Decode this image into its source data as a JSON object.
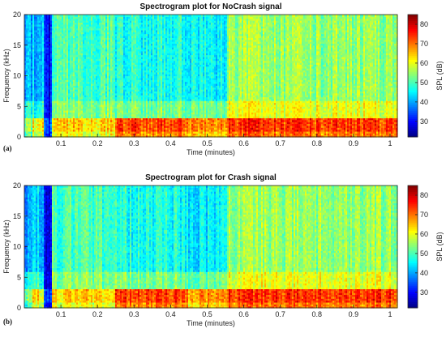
{
  "chart_data": [
    {
      "type": "heatmap",
      "panel_label": "(a)",
      "title": "Spectrogram plot for NoCrash signal",
      "xlabel": "Time (minutes)",
      "ylabel": "Frequency (kHz)",
      "colorbar_label": "SPL (dB)",
      "xlim": [
        0.0,
        1.02
      ],
      "ylim": [
        0,
        20
      ],
      "clim": [
        22,
        85
      ],
      "x_ticks": [
        0.1,
        0.2,
        0.3,
        0.4,
        0.5,
        0.6,
        0.7,
        0.8,
        0.9,
        1
      ],
      "x_tick_labels": [
        "0.1",
        "0.2",
        "0.3",
        "0.4",
        "0.5",
        "0.6",
        "0.7",
        "0.8",
        "0.9",
        "1"
      ],
      "y_ticks": [
        0,
        5,
        10,
        15,
        20
      ],
      "y_tick_labels": [
        "0",
        "5",
        "10",
        "15",
        "20"
      ],
      "colorbar_ticks": [
        30,
        40,
        50,
        60,
        70,
        80
      ],
      "colorbar_tick_labels": [
        "30",
        "40",
        "50",
        "60",
        "70",
        "80"
      ],
      "colormap": "jet",
      "regions": [
        {
          "t": [
            0.0,
            0.02
          ],
          "f_high_db": 40,
          "f_mid_db": 47,
          "f_low_db": 52
        },
        {
          "t": [
            0.02,
            0.055
          ],
          "f_high_db": 42,
          "f_mid_db": 48,
          "f_low_db": 60
        },
        {
          "t": [
            0.055,
            0.075
          ],
          "f_high_db": 30,
          "f_mid_db": 30,
          "f_low_db": 33
        },
        {
          "t": [
            0.075,
            0.25
          ],
          "f_high_db": 50,
          "f_mid_db": 54,
          "f_low_db": 62
        },
        {
          "t": [
            0.25,
            0.45
          ],
          "f_high_db": 47,
          "f_mid_db": 53,
          "f_low_db": 71
        },
        {
          "t": [
            0.45,
            0.555
          ],
          "f_high_db": 45,
          "f_mid_db": 52,
          "f_low_db": 66
        },
        {
          "t": [
            0.555,
            1.02
          ],
          "f_high_db": 55,
          "f_mid_db": 60,
          "f_low_db": 72
        }
      ]
    },
    {
      "type": "heatmap",
      "panel_label": "(b)",
      "title": "Spectrogram plot for Crash signal",
      "xlabel": "Time (minutes)",
      "ylabel": "Frequency (kHz)",
      "colorbar_label": "SPL (dB)",
      "xlim": [
        0.0,
        1.02
      ],
      "ylim": [
        0,
        20
      ],
      "clim": [
        22,
        85
      ],
      "x_ticks": [
        0.1,
        0.2,
        0.3,
        0.4,
        0.5,
        0.6,
        0.7,
        0.8,
        0.9,
        1
      ],
      "x_tick_labels": [
        "0.1",
        "0.2",
        "0.3",
        "0.4",
        "0.5",
        "0.6",
        "0.7",
        "0.8",
        "0.9",
        "1"
      ],
      "y_ticks": [
        0,
        5,
        10,
        15,
        20
      ],
      "y_tick_labels": [
        "0",
        "5",
        "10",
        "15",
        "20"
      ],
      "colorbar_ticks": [
        30,
        40,
        50,
        60,
        70,
        80
      ],
      "colorbar_tick_labels": [
        "30",
        "40",
        "50",
        "60",
        "70",
        "80"
      ],
      "colormap": "jet",
      "regions": [
        {
          "t": [
            0.0,
            0.02
          ],
          "f_high_db": 40,
          "f_mid_db": 47,
          "f_low_db": 52
        },
        {
          "t": [
            0.02,
            0.055
          ],
          "f_high_db": 42,
          "f_mid_db": 48,
          "f_low_db": 60
        },
        {
          "t": [
            0.055,
            0.075
          ],
          "f_high_db": 30,
          "f_mid_db": 30,
          "f_low_db": 33
        },
        {
          "t": [
            0.075,
            0.25
          ],
          "f_high_db": 50,
          "f_mid_db": 54,
          "f_low_db": 62
        },
        {
          "t": [
            0.25,
            0.45
          ],
          "f_high_db": 47,
          "f_mid_db": 53,
          "f_low_db": 71
        },
        {
          "t": [
            0.45,
            0.555
          ],
          "f_high_db": 45,
          "f_mid_db": 52,
          "f_low_db": 66
        },
        {
          "t": [
            0.555,
            1.02
          ],
          "f_high_db": 55,
          "f_mid_db": 60,
          "f_low_db": 72
        }
      ]
    }
  ]
}
